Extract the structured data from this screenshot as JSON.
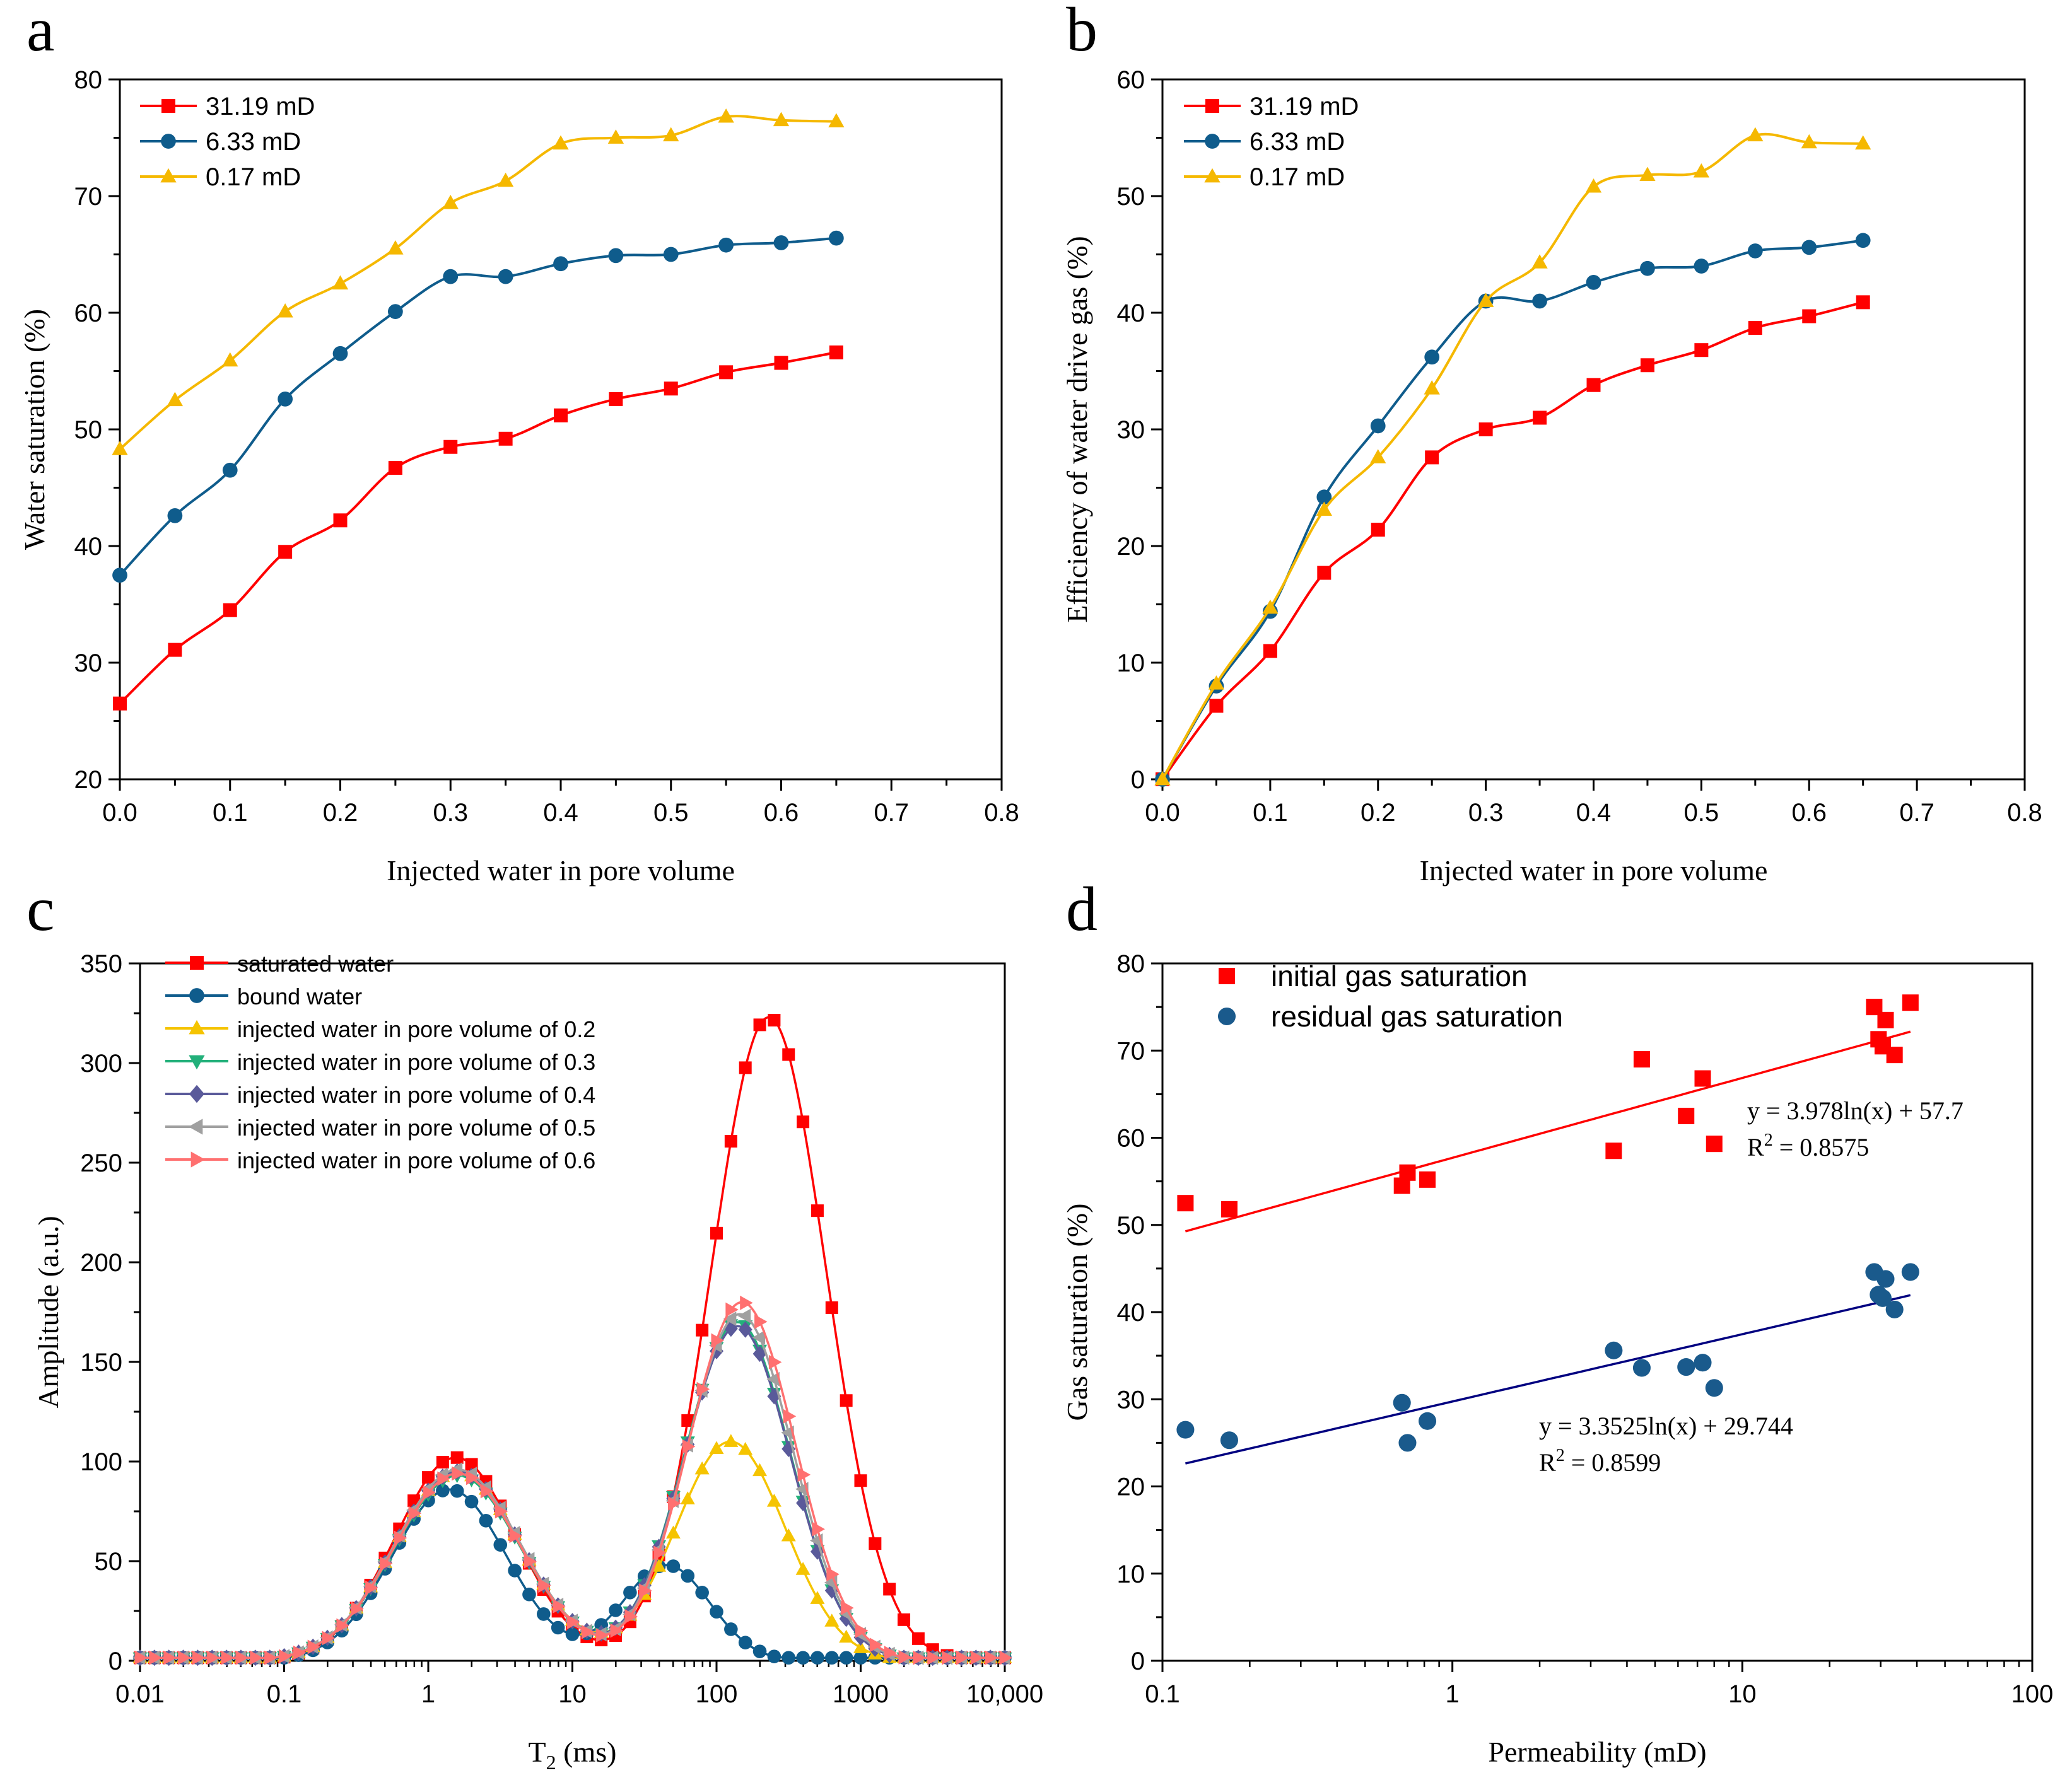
{
  "chart_data": [
    {
      "id": "a",
      "panel_label": "a",
      "type": "line",
      "xlabel": "Injected water in pore volume",
      "ylabel": "Water saturation (%)",
      "xlim": [
        0,
        0.8
      ],
      "ylim": [
        20,
        80
      ],
      "xticks": [
        0,
        0.1,
        0.2,
        0.3,
        0.4,
        0.5,
        0.6,
        0.7,
        0.8
      ],
      "xtick_labels": [
        "0.0",
        "0.1",
        "0.2",
        "0.3",
        "0.4",
        "0.5",
        "0.6",
        "0.7",
        "0.8"
      ],
      "yticks": [
        20,
        30,
        40,
        50,
        60,
        70,
        80
      ],
      "ytick_labels": [
        "20",
        "30",
        "40",
        "50",
        "60",
        "70",
        "80"
      ],
      "legend_position": "top-left",
      "x": [
        0,
        0.05,
        0.1,
        0.15,
        0.2,
        0.25,
        0.3,
        0.35,
        0.4,
        0.45,
        0.5,
        0.55,
        0.6,
        0.65
      ],
      "series": [
        {
          "name": "31.19 mD",
          "color": "#ff0000",
          "marker": "square",
          "values": [
            26.5,
            31.1,
            34.5,
            39.5,
            42.2,
            46.7,
            48.5,
            49.2,
            51.2,
            52.6,
            53.5,
            54.9,
            55.7,
            56.6
          ]
        },
        {
          "name": "6.33 mD",
          "color": "#0f5c8c",
          "marker": "circle",
          "values": [
            37.5,
            42.6,
            46.5,
            52.6,
            56.5,
            60.1,
            63.1,
            63.1,
            64.2,
            64.9,
            65.0,
            65.8,
            66.0,
            66.4
          ]
        },
        {
          "name": "0.17 mD",
          "color": "#f5b800",
          "marker": "triangle-up",
          "values": [
            48.3,
            52.5,
            55.9,
            60.1,
            62.5,
            65.5,
            69.4,
            71.3,
            74.5,
            75.0,
            75.2,
            76.8,
            76.5,
            76.4
          ]
        }
      ]
    },
    {
      "id": "b",
      "panel_label": "b",
      "type": "line",
      "xlabel": "Injected water in pore volume",
      "ylabel": "Efficiency of water drive gas (%)",
      "xlim": [
        0,
        0.8
      ],
      "ylim": [
        0,
        60
      ],
      "xticks": [
        0,
        0.1,
        0.2,
        0.3,
        0.4,
        0.5,
        0.6,
        0.7,
        0.8
      ],
      "xtick_labels": [
        "0.0",
        "0.1",
        "0.2",
        "0.3",
        "0.4",
        "0.5",
        "0.6",
        "0.7",
        "0.8"
      ],
      "yticks": [
        0,
        10,
        20,
        30,
        40,
        50,
        60
      ],
      "ytick_labels": [
        "0",
        "10",
        "20",
        "30",
        "40",
        "50",
        "60"
      ],
      "legend_position": "top-left",
      "x": [
        0,
        0.05,
        0.1,
        0.15,
        0.2,
        0.25,
        0.3,
        0.35,
        0.4,
        0.45,
        0.5,
        0.55,
        0.6,
        0.65
      ],
      "series": [
        {
          "name": "31.19 mD",
          "color": "#ff0000",
          "marker": "square",
          "values": [
            0,
            6.3,
            11.0,
            17.7,
            21.4,
            27.6,
            30.0,
            31.0,
            33.8,
            35.5,
            36.8,
            38.7,
            39.7,
            40.9
          ]
        },
        {
          "name": "6.33 mD",
          "color": "#0f5c8c",
          "marker": "circle",
          "values": [
            0,
            8.0,
            14.4,
            24.2,
            30.3,
            36.2,
            41.0,
            41.0,
            42.6,
            43.8,
            44.0,
            45.3,
            45.6,
            46.2
          ]
        },
        {
          "name": "0.17 mD",
          "color": "#f5b800",
          "marker": "triangle-up",
          "values": [
            0,
            8.2,
            14.7,
            23.1,
            27.6,
            33.5,
            41.0,
            44.3,
            50.8,
            51.8,
            52.1,
            55.2,
            54.6,
            54.5
          ]
        }
      ]
    },
    {
      "id": "c",
      "panel_label": "c",
      "type": "line",
      "xscale": "log",
      "xlabel": "T",
      "xlabel_sub": "2",
      "xlabel_unit": " (ms)",
      "ylabel": "Amplitude (a.u.)",
      "xlim": [
        0.01,
        10000
      ],
      "ylim": [
        0,
        350
      ],
      "xticks": [
        0.01,
        0.1,
        1,
        10,
        100,
        1000,
        10000
      ],
      "xtick_labels": [
        "0.01",
        "0.1",
        "1",
        "10",
        "100",
        "1000",
        "10,000"
      ],
      "yticks": [
        0,
        50,
        100,
        150,
        200,
        250,
        300,
        350
      ],
      "ytick_labels": [
        "0",
        "50",
        "100",
        "150",
        "200",
        "250",
        "300",
        "350"
      ],
      "legend_position": "top-left",
      "x_points_per_decade": 10,
      "series": [
        {
          "name": "saturated water",
          "color": "#ff0000",
          "marker": "square",
          "peaks": [
            [
              1.55,
              0.42,
              102
            ],
            [
              230,
              0.4,
              323
            ]
          ]
        },
        {
          "name": "bound water",
          "color": "#0f5c8c",
          "marker": "circle",
          "peaks": [
            [
              1.4,
              0.4,
              86
            ],
            [
              45,
              0.3,
              48
            ]
          ]
        },
        {
          "name": "injected water in pore volume of 0.2",
          "color": "#f5c400",
          "marker": "triangle-up",
          "peaks": [
            [
              1.6,
              0.44,
              95
            ],
            [
              125,
              0.38,
              110
            ]
          ]
        },
        {
          "name": "injected water in pore volume of 0.3",
          "color": "#22b07a",
          "marker": "triangle-down",
          "peaks": [
            [
              1.6,
              0.44,
              93
            ],
            [
              140,
              0.37,
              170
            ]
          ]
        },
        {
          "name": "injected water in pore volume of 0.4",
          "color": "#5a5a9a",
          "marker": "diamond",
          "peaks": [
            [
              1.6,
              0.44,
              95
            ],
            [
              140,
              0.37,
              168
            ]
          ]
        },
        {
          "name": "injected water in pore volume of 0.5",
          "color": "#a0a0a0",
          "marker": "triangle-left",
          "peaks": [
            [
              1.6,
              0.44,
              96
            ],
            [
              145,
              0.37,
              174
            ]
          ]
        },
        {
          "name": "injected water in pore volume of 0.6",
          "color": "#ff7070",
          "marker": "triangle-right",
          "peaks": [
            [
              1.6,
              0.44,
              94
            ],
            [
              150,
              0.37,
              180
            ]
          ]
        }
      ]
    },
    {
      "id": "d",
      "panel_label": "d",
      "type": "scatter",
      "xscale": "log",
      "xlabel": "Permeability (mD)",
      "ylabel": "Gas saturation (%)",
      "xlim": [
        0.1,
        100
      ],
      "ylim": [
        0,
        80
      ],
      "xticks": [
        0.1,
        1,
        10,
        100
      ],
      "xtick_labels": [
        "0.1",
        "1",
        "10",
        "100"
      ],
      "yticks": [
        0,
        10,
        20,
        30,
        40,
        50,
        60,
        70,
        80
      ],
      "ytick_labels": [
        "0",
        "10",
        "20",
        "30",
        "40",
        "50",
        "60",
        "70",
        "80"
      ],
      "legend_position": "top-left",
      "series": [
        {
          "name": "initial gas saturation",
          "color": "#ff0000",
          "marker": "square",
          "x": [
            0.12,
            0.17,
            0.67,
            0.7,
            0.82,
            3.6,
            4.5,
            6.4,
            7.3,
            8.0,
            28.5,
            29.5,
            30.5,
            31.2,
            33.5,
            38.0
          ],
          "y": [
            52.5,
            51.8,
            54.5,
            56.0,
            55.2,
            58.5,
            69.0,
            62.5,
            66.8,
            59.3,
            75.0,
            71.3,
            70.5,
            73.5,
            69.5,
            75.5
          ],
          "fit": {
            "a": 3.978,
            "b": 57.7,
            "x_range": [
              0.12,
              38
            ],
            "line_color": "#ff0000"
          },
          "equation": "y = 3.978ln(x) + 57.7",
          "r2_label": "R",
          "r2_exp": "2",
          "r2_value": " = 0.8575"
        },
        {
          "name": "residual gas saturation",
          "color": "#1a5a8c",
          "marker": "circle",
          "x": [
            0.12,
            0.17,
            0.67,
            0.7,
            0.82,
            3.6,
            4.5,
            6.4,
            7.3,
            8.0,
            28.5,
            29.5,
            30.5,
            31.2,
            33.5,
            38.0
          ],
          "y": [
            26.5,
            25.3,
            29.6,
            25.0,
            27.5,
            35.6,
            33.6,
            33.7,
            34.2,
            31.3,
            44.6,
            42.0,
            41.6,
            43.8,
            40.3,
            44.6
          ],
          "fit": {
            "a": 3.3525,
            "b": 29.744,
            "x_range": [
              0.12,
              38
            ],
            "line_color": "#000080"
          },
          "equation": "y = 3.3525ln(x) + 29.744",
          "r2_label": "R",
          "r2_exp": "2",
          "r2_value": " = 0.8599"
        }
      ]
    }
  ]
}
